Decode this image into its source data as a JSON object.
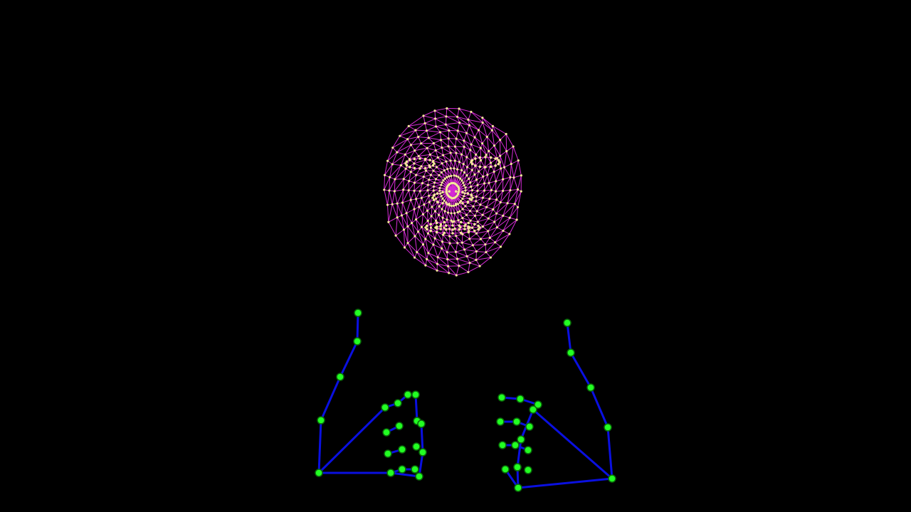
{
  "scene": {
    "background_color": "#000000",
    "face_mesh": {
      "edge_color": "#d62bd6",
      "landmark_color": "#f4e89a"
    },
    "hands": {
      "bone_color": "#0a10e0",
      "joint_color": "#22ff22",
      "joint_ring_color": "#0a6a0a"
    }
  }
}
